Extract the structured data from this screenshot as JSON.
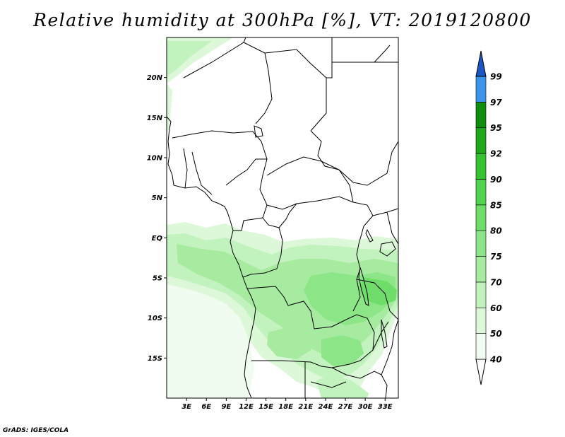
{
  "title": "Relative humidity at 300hPa [%], VT: 2019120800",
  "credit": "GrADS: IGES/COLA",
  "map": {
    "projection": "lat-lon",
    "lon_range": [
      0,
      35
    ],
    "lat_range": [
      -20,
      25
    ],
    "lat_ticks": [
      {
        "value": 20,
        "label": "20N"
      },
      {
        "value": 15,
        "label": "15N"
      },
      {
        "value": 10,
        "label": "10N"
      },
      {
        "value": 5,
        "label": "5N"
      },
      {
        "value": 0,
        "label": "EQ"
      },
      {
        "value": -5,
        "label": "5S"
      },
      {
        "value": -10,
        "label": "10S"
      },
      {
        "value": -15,
        "label": "15S"
      }
    ],
    "lon_ticks": [
      {
        "value": 3,
        "label": "3E"
      },
      {
        "value": 6,
        "label": "6E"
      },
      {
        "value": 9,
        "label": "9E"
      },
      {
        "value": 12,
        "label": "12E"
      },
      {
        "value": 15,
        "label": "15E"
      },
      {
        "value": 18,
        "label": "18E"
      },
      {
        "value": 21,
        "label": "21E"
      },
      {
        "value": 24,
        "label": "24E"
      },
      {
        "value": 27,
        "label": "27E"
      },
      {
        "value": 30,
        "label": "30E"
      },
      {
        "value": 33,
        "label": "33E"
      }
    ]
  },
  "colorbar": {
    "levels": [
      {
        "label": "40",
        "color": "#f0fcef"
      },
      {
        "label": "50",
        "color": "#dcf8d8"
      },
      {
        "label": "60",
        "color": "#c2f2bd"
      },
      {
        "label": "70",
        "color": "#a6eba0"
      },
      {
        "label": "75",
        "color": "#8ce587"
      },
      {
        "label": "80",
        "color": "#6fdd6a"
      },
      {
        "label": "85",
        "color": "#52d34e"
      },
      {
        "label": "90",
        "color": "#37c232"
      },
      {
        "label": "92",
        "color": "#22a81c"
      },
      {
        "label": "95",
        "color": "#128e0e"
      },
      {
        "label": "97",
        "color": "#3c93ea"
      },
      {
        "label": "99",
        "color": "#2270d8"
      }
    ],
    "bottom_tip_color": "#ffffff",
    "top_tip_color": "#1a56c4"
  }
}
